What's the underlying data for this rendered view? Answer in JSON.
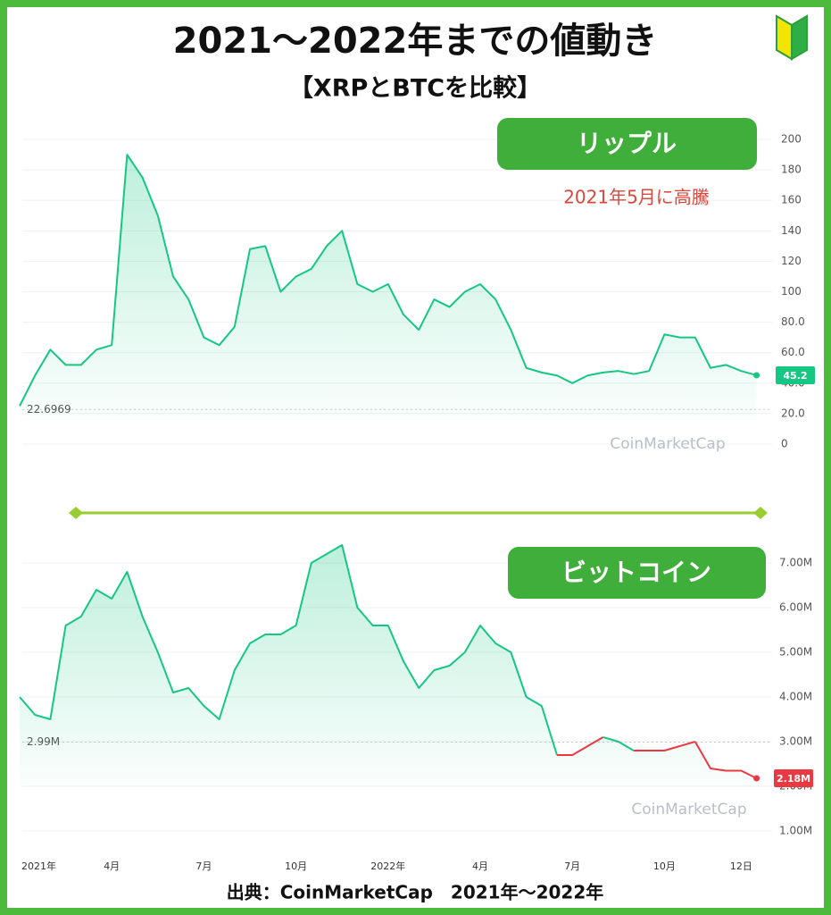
{
  "title": "2021〜2022年までの値動き",
  "subtitle": "【XRPとBTCを比較】",
  "source": "出典：CoinMarketCap　2021年〜2022年",
  "chart_data": [
    {
      "type": "line",
      "label": "リップル",
      "annotation": "2021年5月に高騰",
      "watermark": "CoinMarketCap",
      "color": "#16c784",
      "down_color": "#ea3943",
      "grid": true,
      "baseline": 22.6969,
      "ylim": [
        0,
        210
      ],
      "yticks": [
        0,
        {
          "value": 20,
          "label": "20.0"
        },
        {
          "value": 40,
          "label": "40.0"
        },
        {
          "value": 60,
          "label": "60.0"
        },
        {
          "value": 80,
          "label": "80.0"
        },
        100,
        120,
        140,
        160,
        180,
        200
      ],
      "values": [
        25,
        45,
        62,
        52,
        52,
        62,
        65,
        190,
        175,
        150,
        110,
        95,
        70,
        65,
        77,
        128,
        130,
        100,
        110,
        115,
        130,
        140,
        105,
        100,
        105,
        85,
        75,
        95,
        90,
        100,
        105,
        95,
        75,
        50,
        47,
        45,
        40,
        45,
        47,
        48,
        46,
        48,
        72,
        70,
        70,
        50,
        52,
        48,
        45.2
      ]
    },
    {
      "type": "line",
      "label": "ビットコイン",
      "watermark": "CoinMarketCap",
      "color": "#16c784",
      "down_color": "#ea3943",
      "grid": true,
      "baseline": {
        "value": 2990000,
        "label": "2.99M"
      },
      "ylim": [
        0,
        7700000
      ],
      "yticks": [
        {
          "value": 1000000,
          "label": "1.00M"
        },
        {
          "value": 2000000,
          "label": "2.00M"
        },
        {
          "value": 3000000,
          "label": "3.00M"
        },
        {
          "value": 4000000,
          "label": "4.00M"
        },
        {
          "value": 5000000,
          "label": "5.00M"
        },
        {
          "value": 6000000,
          "label": "6.00M"
        },
        {
          "value": 7000000,
          "label": "7.00M"
        }
      ],
      "categories": [
        "2021年",
        null,
        null,
        null,
        null,
        null,
        "4月",
        null,
        null,
        null,
        null,
        null,
        "7月",
        null,
        null,
        null,
        null,
        null,
        "10月",
        null,
        null,
        null,
        null,
        null,
        "2022年",
        null,
        null,
        null,
        null,
        null,
        "4月",
        null,
        null,
        null,
        null,
        null,
        "7月",
        null,
        null,
        null,
        null,
        null,
        "10月",
        null,
        null,
        null,
        null,
        "12日",
        null
      ],
      "values": [
        4000000,
        3600000,
        3500000,
        5600000,
        5800000,
        6400000,
        6200000,
        6800000,
        5800000,
        5000000,
        4100000,
        4200000,
        3800000,
        3500000,
        4600000,
        5200000,
        5400000,
        5400000,
        5600000,
        7000000,
        7200000,
        7400000,
        6000000,
        5600000,
        5600000,
        4800000,
        4200000,
        4600000,
        4700000,
        5000000,
        5600000,
        5200000,
        5000000,
        4000000,
        3800000,
        2700000,
        2700000,
        2900000,
        3100000,
        3000000,
        2800000,
        2800000,
        2800000,
        2900000,
        3000000,
        2400000,
        2350000,
        2350000,
        2180000
      ],
      "value_labels": [
        null,
        null,
        null,
        null,
        null,
        null,
        null,
        null,
        null,
        null,
        null,
        null,
        null,
        null,
        null,
        null,
        null,
        null,
        null,
        null,
        null,
        null,
        null,
        null,
        null,
        null,
        null,
        null,
        null,
        null,
        null,
        null,
        null,
        null,
        null,
        null,
        null,
        null,
        null,
        null,
        null,
        null,
        null,
        null,
        null,
        null,
        null,
        null,
        "2.18M"
      ]
    }
  ]
}
